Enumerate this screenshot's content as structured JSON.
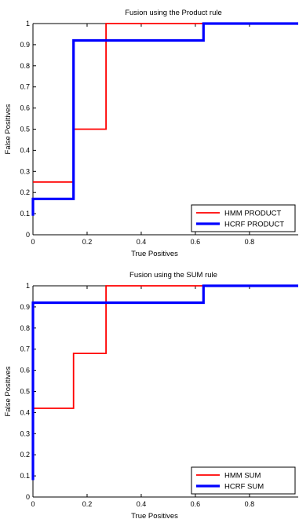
{
  "chart_data": [
    {
      "type": "line",
      "title": "Fusion using the Product rule",
      "xlabel": "True Positives",
      "ylabel": "False Positives",
      "xlim": [
        0,
        0.98
      ],
      "ylim": [
        0,
        1
      ],
      "xticks": [
        "0",
        "0.2",
        "0.4",
        "0.6",
        "0.8"
      ],
      "yticks": [
        "0",
        "0.1",
        "0.2",
        "0.3",
        "0.4",
        "0.5",
        "0.6",
        "0.7",
        "0.8",
        "0.9",
        "1"
      ],
      "grid": false,
      "legend_position": "bottom-right",
      "series": [
        {
          "name": "HMM PRODUCT",
          "color": "#ff0000",
          "points": [
            [
              0,
              0.25
            ],
            [
              0.15,
              0.25
            ],
            [
              0.15,
              0.5
            ],
            [
              0.27,
              0.5
            ],
            [
              0.27,
              1
            ],
            [
              0.98,
              1
            ]
          ]
        },
        {
          "name": "HCRF PRODUCT",
          "color": "#0000ff",
          "points": [
            [
              0,
              0.09
            ],
            [
              0,
              0.17
            ],
            [
              0.15,
              0.17
            ],
            [
              0.15,
              0.92
            ],
            [
              0.63,
              0.92
            ],
            [
              0.63,
              1
            ],
            [
              0.98,
              1
            ]
          ]
        }
      ]
    },
    {
      "type": "line",
      "title": "Fusion using the SUM rule",
      "xlabel": "True Positives",
      "ylabel": "False Positives",
      "xlim": [
        0,
        0.98
      ],
      "ylim": [
        0,
        1
      ],
      "xticks": [
        "0",
        "0.2",
        "0.4",
        "0.6",
        "0.8"
      ],
      "yticks": [
        "0",
        "0.1",
        "0.2",
        "0.3",
        "0.4",
        "0.5",
        "0.6",
        "0.7",
        "0.8",
        "0.9",
        "1"
      ],
      "grid": false,
      "legend_position": "bottom-right",
      "series": [
        {
          "name": "HMM SUM",
          "color": "#ff0000",
          "points": [
            [
              0,
              0.42
            ],
            [
              0.15,
              0.42
            ],
            [
              0.15,
              0.68
            ],
            [
              0.27,
              0.68
            ],
            [
              0.27,
              1
            ],
            [
              0.98,
              1
            ]
          ]
        },
        {
          "name": "HCRF SUM",
          "color": "#0000ff",
          "points": [
            [
              0,
              0.08
            ],
            [
              0,
              0.92
            ],
            [
              0.63,
              0.92
            ],
            [
              0.63,
              1
            ],
            [
              0.98,
              1
            ]
          ]
        }
      ]
    }
  ]
}
